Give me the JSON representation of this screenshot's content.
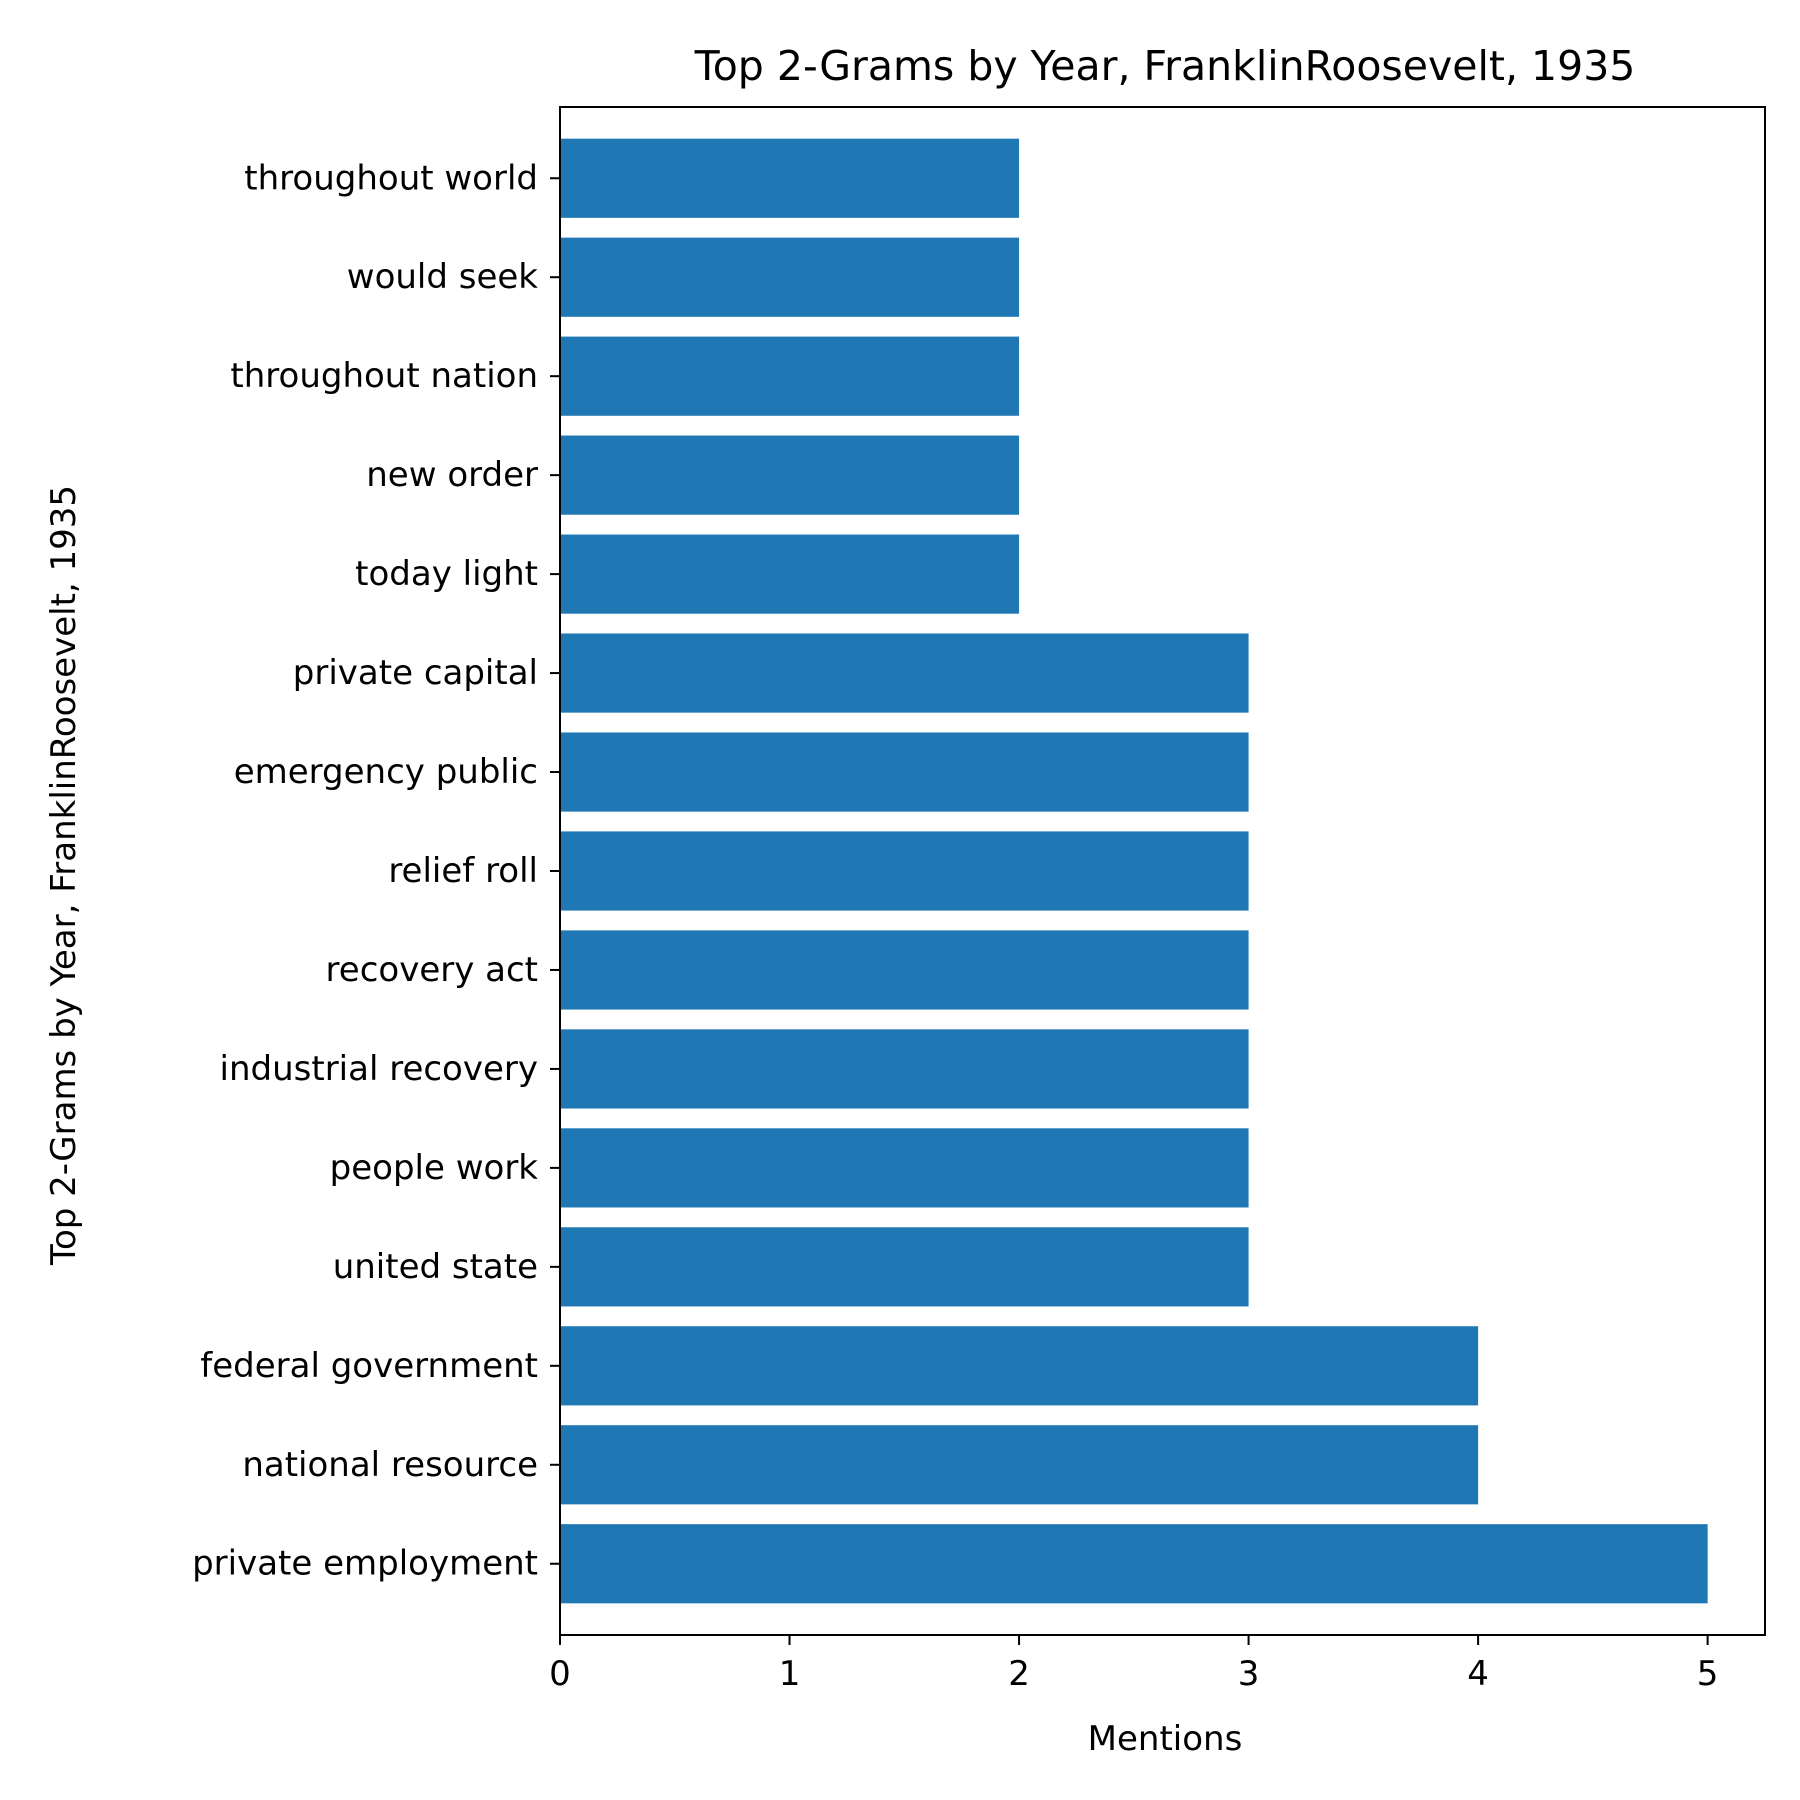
{
  "chart_data": {
    "type": "bar",
    "orientation": "horizontal",
    "title": "Top 2-Grams by Year, FranklinRoosevelt, 1935",
    "xlabel": "Mentions",
    "ylabel": "Top 2-Grams by Year, FranklinRoosevelt, 1935",
    "categories": [
      "private employment",
      "national resource",
      "federal government",
      "united state",
      "people work",
      "industrial recovery",
      "recovery act",
      "relief roll",
      "emergency public",
      "private capital",
      "today light",
      "new order",
      "throughout nation",
      "would seek",
      "throughout world"
    ],
    "values": [
      5,
      4,
      4,
      3,
      3,
      3,
      3,
      3,
      3,
      3,
      2,
      2,
      2,
      2,
      2
    ],
    "xlim": [
      0,
      5.25
    ],
    "xticks": [
      0,
      1,
      2,
      3,
      4,
      5
    ],
    "grid": false,
    "colors": {
      "bar": "#1f77b4",
      "axis": "#000000",
      "background": "#ffffff"
    }
  }
}
